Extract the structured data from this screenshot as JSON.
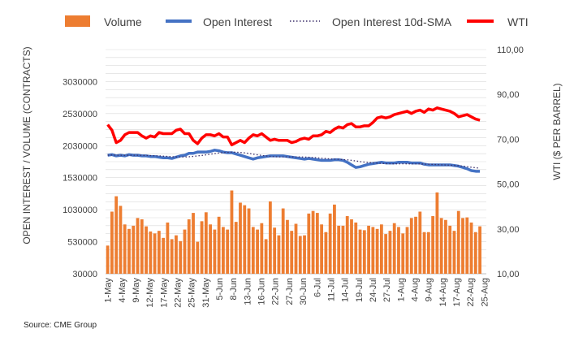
{
  "source": "Source: CME Group",
  "legend": {
    "volume": "Volume",
    "open_interest": "Open Interest",
    "sma": "Open Interest 10d-SMA",
    "wti": "WTI"
  },
  "colors": {
    "volume": "#ED7D31",
    "open_interest": "#4472C4",
    "sma": "#3B2F6B",
    "wti": "#FF0000",
    "grid": "#D9D9D9"
  },
  "chart_data": {
    "type": "bar",
    "ylabel": "OPEN INTEREST / VOLUME (CONTRACTS)",
    "y2label": "WTI ($ PER BARREL)",
    "ylim": [
      30000,
      3530000
    ],
    "y2lim": [
      10,
      110
    ],
    "yticks": [
      "30000",
      "530000",
      "1030000",
      "1530000",
      "2030000",
      "2530000",
      "3030000"
    ],
    "y2ticks": [
      "10,00",
      "30,00",
      "50,00",
      "70,00",
      "90,00",
      "110,00"
    ],
    "xticklabels": [
      "1-May",
      "4-May",
      "9-May",
      "12-May",
      "17-May",
      "22-May",
      "25-May",
      "31-May",
      "5-Jun",
      "8-Jun",
      "13-Jun",
      "16-Jun",
      "22-Jun",
      "27-Jun",
      "30-Jun",
      "6-Jul",
      "11-Jul",
      "14-Jul",
      "19-Jul",
      "24-Jul",
      "27-Jul",
      "1-Aug",
      "4-Aug",
      "9-Aug",
      "14-Aug",
      "17-Aug",
      "22-Aug",
      "25-Aug"
    ],
    "grid": true,
    "legend_position": "top",
    "series": [
      {
        "name": "Volume",
        "type": "bar",
        "axis": "left",
        "values": [
          470000,
          1000000,
          1240000,
          1090000,
          800000,
          730000,
          780000,
          900000,
          880000,
          770000,
          690000,
          660000,
          700000,
          590000,
          830000,
          570000,
          630000,
          540000,
          720000,
          880000,
          980000,
          530000,
          850000,
          990000,
          800000,
          720000,
          920000,
          760000,
          720000,
          1330000,
          840000,
          1140000,
          1100000,
          1050000,
          760000,
          720000,
          820000,
          570000,
          1160000,
          750000,
          630000,
          1050000,
          870000,
          700000,
          810000,
          620000,
          630000,
          970000,
          1010000,
          980000,
          800000,
          680000,
          970000,
          1110000,
          780000,
          780000,
          930000,
          880000,
          830000,
          720000,
          710000,
          780000,
          760000,
          730000,
          800000,
          650000,
          700000,
          820000,
          760000,
          660000,
          760000,
          900000,
          920000,
          1000000,
          680000,
          680000,
          930000,
          1300000,
          900000,
          870000,
          780000,
          700000,
          1010000,
          900000,
          910000,
          830000,
          680000,
          770000
        ]
      },
      {
        "name": "Open Interest",
        "type": "line",
        "axis": "left",
        "values": [
          1880000,
          1890000,
          1870000,
          1880000,
          1870000,
          1890000,
          1880000,
          1880000,
          1870000,
          1870000,
          1860000,
          1860000,
          1850000,
          1840000,
          1840000,
          1830000,
          1850000,
          1870000,
          1880000,
          1910000,
          1910000,
          1930000,
          1930000,
          1930000,
          1940000,
          1960000,
          1950000,
          1930000,
          1920000,
          1920000,
          1900000,
          1880000,
          1860000,
          1840000,
          1820000,
          1840000,
          1850000,
          1860000,
          1870000,
          1870000,
          1870000,
          1870000,
          1860000,
          1850000,
          1840000,
          1830000,
          1820000,
          1830000,
          1820000,
          1810000,
          1800000,
          1800000,
          1800000,
          1810000,
          1810000,
          1800000,
          1770000,
          1730000,
          1690000,
          1700000,
          1720000,
          1740000,
          1750000,
          1760000,
          1770000,
          1760000,
          1760000,
          1760000,
          1770000,
          1770000,
          1770000,
          1760000,
          1760000,
          1760000,
          1740000,
          1730000,
          1730000,
          1730000,
          1730000,
          1730000,
          1730000,
          1720000,
          1710000,
          1690000,
          1670000,
          1640000,
          1630000,
          1630000
        ]
      },
      {
        "name": "Open Interest 10d-SMA",
        "type": "line",
        "axis": "left",
        "values": [
          1880000,
          1885000,
          1880000,
          1880000,
          1878000,
          1880000,
          1880000,
          1880000,
          1878000,
          1877000,
          1875000,
          1872000,
          1870000,
          1866000,
          1862000,
          1857000,
          1855000,
          1854000,
          1853000,
          1856000,
          1862000,
          1870000,
          1877000,
          1886000,
          1896000,
          1906000,
          1915000,
          1922000,
          1926000,
          1929000,
          1928000,
          1925000,
          1918000,
          1909000,
          1897000,
          1887000,
          1877000,
          1869000,
          1862000,
          1857000,
          1855000,
          1854000,
          1854000,
          1855000,
          1855000,
          1854000,
          1852000,
          1849000,
          1845000,
          1840000,
          1834000,
          1828000,
          1823000,
          1819000,
          1816000,
          1812000,
          1808000,
          1801000,
          1791000,
          1781000,
          1773000,
          1766000,
          1761000,
          1757000,
          1753000,
          1749000,
          1747000,
          1746000,
          1746000,
          1747000,
          1746000,
          1745000,
          1745000,
          1744000,
          1742000,
          1740000,
          1737000,
          1734000,
          1731000,
          1728000,
          1725000,
          1722000,
          1717000,
          1710000,
          1702000,
          1693000,
          1685000,
          1678000
        ]
      },
      {
        "name": "WTI",
        "type": "line",
        "axis": "right",
        "values": [
          76.5,
          74,
          68.5,
          69.5,
          72,
          73,
          73,
          73,
          71.5,
          70.5,
          71.5,
          71,
          73,
          72.5,
          72.5,
          72.5,
          74,
          74.5,
          72.5,
          72.5,
          69.5,
          68,
          70.5,
          72,
          72,
          71.5,
          72.5,
          71,
          71,
          67.5,
          68.5,
          69.5,
          68.5,
          70.5,
          72,
          71.5,
          72.5,
          71,
          69.5,
          70,
          69.5,
          69.5,
          69.5,
          68.5,
          69,
          70,
          70.5,
          70,
          71.5,
          71.5,
          72,
          73.5,
          73,
          74.5,
          75.5,
          75,
          76.5,
          77,
          75.5,
          75.5,
          76,
          76,
          77.5,
          79.5,
          80,
          79.5,
          80,
          81,
          81.5,
          82,
          82.5,
          81.5,
          82.5,
          83,
          82,
          83.5,
          83,
          84,
          83.5,
          83,
          82.5,
          81.5,
          80,
          80.5,
          81,
          80,
          79,
          78.5
        ]
      }
    ]
  }
}
